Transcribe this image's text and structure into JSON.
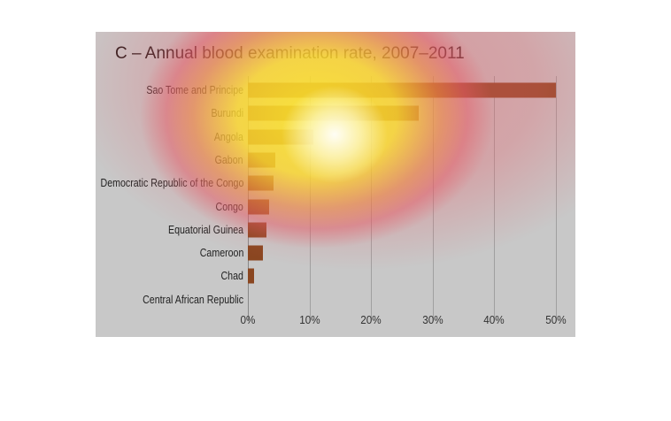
{
  "chart_data": {
    "type": "bar",
    "orientation": "horizontal",
    "title": "C – Annual blood examination rate, 2007–2011",
    "categories": [
      "Sao Tome and Principe",
      "Burundi",
      "Angola",
      "Gabon",
      "Democratic Republic of the Congo",
      "Congo",
      "Equatorial Guinea",
      "Cameroon",
      "Chad",
      "Central African Republic"
    ],
    "values": [
      50,
      27.8,
      10.6,
      4.4,
      4.2,
      3.4,
      3.0,
      2.4,
      1.0,
      0
    ],
    "unit": "%",
    "xlim": [
      0,
      50
    ],
    "xticks": [
      "0%",
      "10%",
      "20%",
      "30%",
      "40%",
      "50%"
    ],
    "grid": true,
    "bar_color": "#8a4620"
  }
}
